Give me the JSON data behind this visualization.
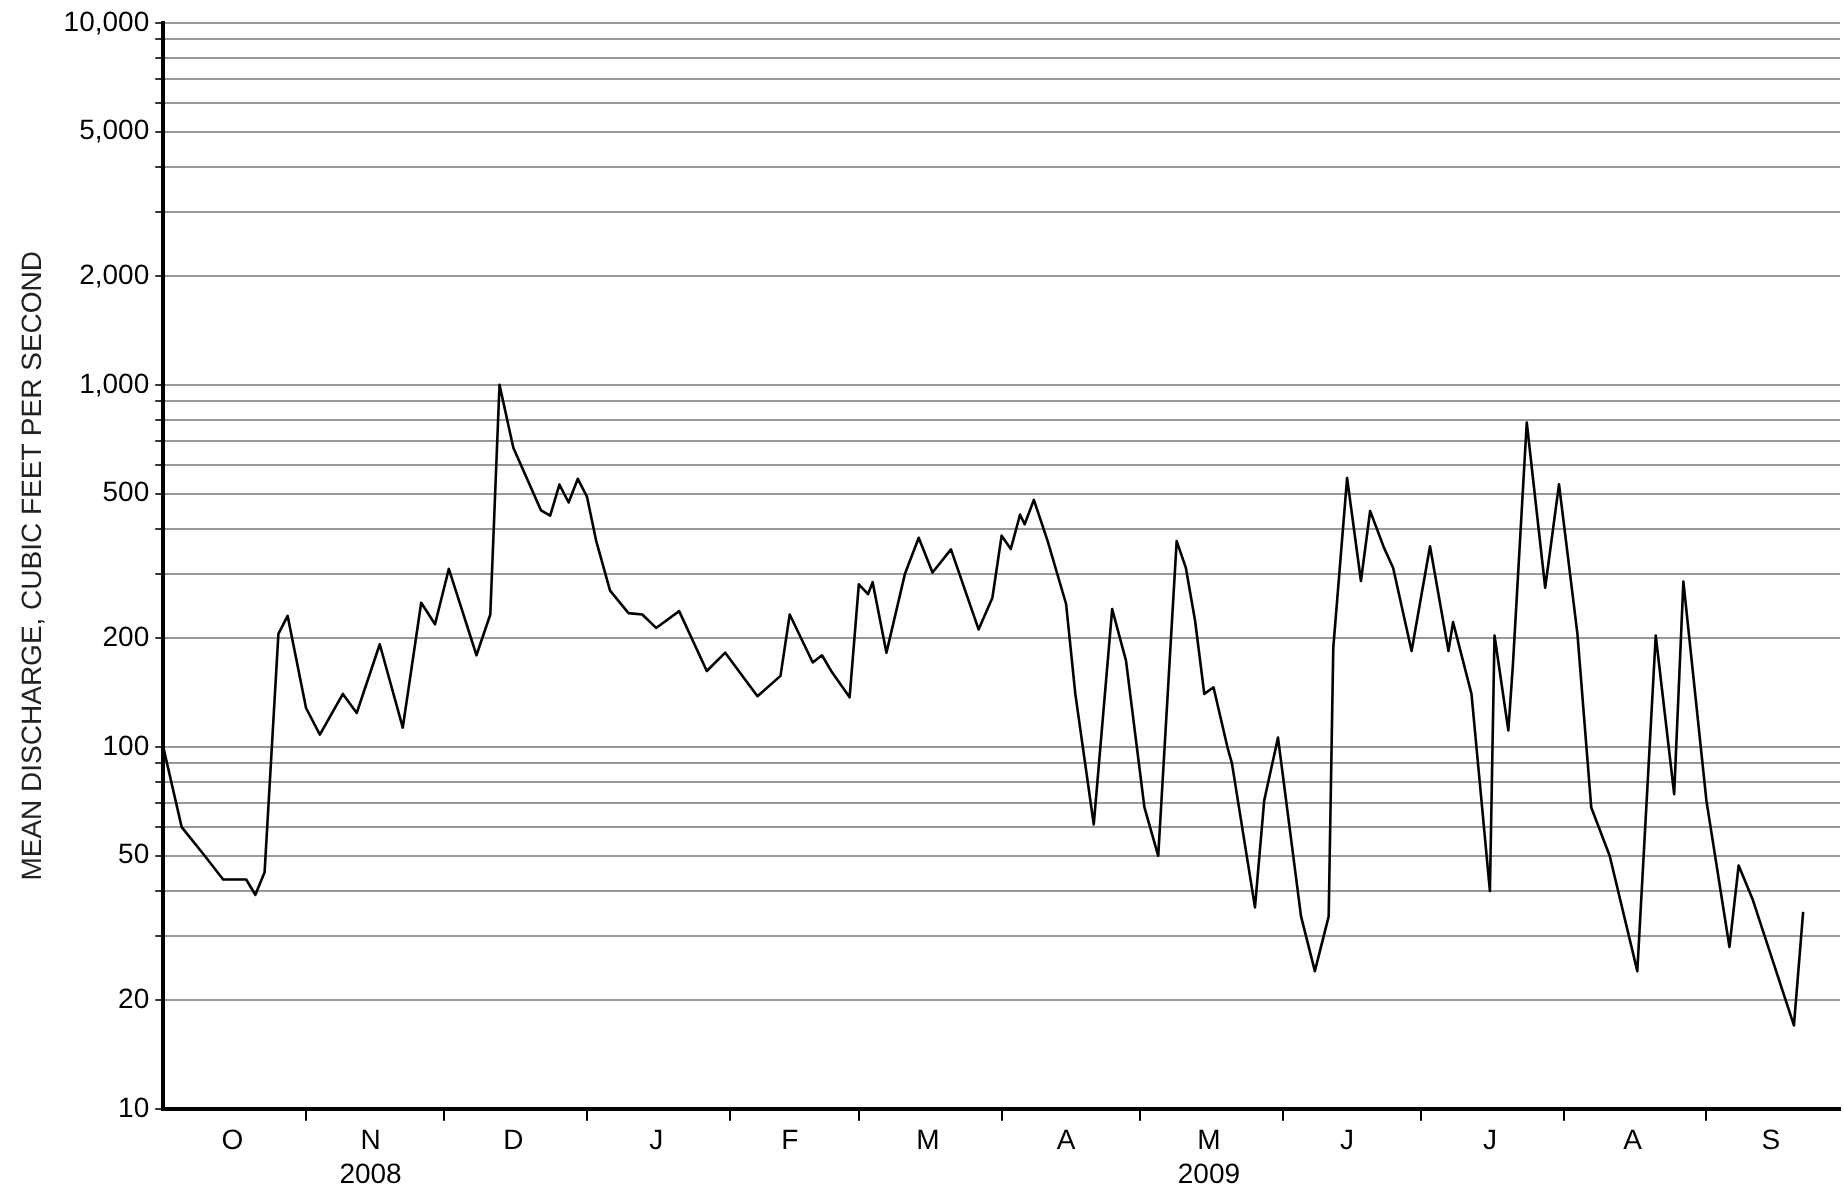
{
  "chart_data": {
    "type": "line",
    "ylabel": "MEAN DISCHARGE, CUBIC FEET PER SECOND",
    "log": "y",
    "grid": "y",
    "legend": false,
    "marker": "none",
    "line_style": "solid",
    "xlim": [
      "2008-10-01",
      "2009-09-30"
    ],
    "xticks": [
      {
        "value": "2008-11-01",
        "label": null
      },
      {
        "value": "2008-12-01",
        "label": null
      },
      {
        "value": "2009-01-01",
        "label": null
      },
      {
        "value": "2009-02-01",
        "label": null
      },
      {
        "value": "2009-03-01",
        "label": null
      },
      {
        "value": "2009-04-01",
        "label": null
      },
      {
        "value": "2009-05-01",
        "label": null
      },
      {
        "value": "2009-06-01",
        "label": null
      },
      {
        "value": "2009-07-01",
        "label": null
      },
      {
        "value": "2009-08-01",
        "label": null
      },
      {
        "value": "2009-09-01",
        "label": null
      },
      {
        "value": "2008-10-16",
        "label": "O"
      },
      {
        "value": "2008-11-15",
        "label": "N\n2008"
      },
      {
        "value": "2008-12-16",
        "label": "D"
      },
      {
        "value": "2009-01-16",
        "label": "J"
      },
      {
        "value": "2009-02-14",
        "label": "F"
      },
      {
        "value": "2009-03-16",
        "label": "M"
      },
      {
        "value": "2009-04-15",
        "label": "A"
      },
      {
        "value": "2009-05-16",
        "label": "M\n2009"
      },
      {
        "value": "2009-06-15",
        "label": "J"
      },
      {
        "value": "2009-07-16",
        "label": "J"
      },
      {
        "value": "2009-08-16",
        "label": "A"
      },
      {
        "value": "2009-09-15",
        "label": "S"
      }
    ],
    "ylim": [
      10,
      10000
    ],
    "yticks": [
      10,
      20,
      {
        "value": 30,
        "label": null
      },
      {
        "value": 40,
        "label": null
      },
      50,
      {
        "value": 60,
        "label": null
      },
      {
        "value": 70,
        "label": null
      },
      {
        "value": 80,
        "label": null
      },
      {
        "value": 90,
        "label": null
      },
      100,
      200,
      {
        "value": 300,
        "label": null
      },
      {
        "value": 400,
        "label": null
      },
      500,
      {
        "value": 600,
        "label": null
      },
      {
        "value": 700,
        "label": null
      },
      {
        "value": 800,
        "label": null
      },
      {
        "value": 900,
        "label": null
      },
      {
        "value": 1000,
        "label": "1,000"
      },
      {
        "value": 2000,
        "label": "2,000"
      },
      {
        "value": 3000,
        "label": null
      },
      {
        "value": 4000,
        "label": null
      },
      {
        "value": 5000,
        "label": "5,000"
      },
      {
        "value": 6000,
        "label": null
      },
      {
        "value": 7000,
        "label": null
      },
      {
        "value": 8000,
        "label": null
      },
      {
        "value": 9000,
        "label": null
      },
      {
        "value": 10000,
        "label": "10,000"
      }
    ],
    "x": [
      "2008-10-01",
      "2008-10-05",
      "2008-10-10",
      "2008-10-14",
      "2008-10-19",
      "2008-10-21",
      "2008-10-23",
      "2008-10-26",
      "2008-10-28",
      "2008-11-01",
      "2008-11-04",
      "2008-11-09",
      "2008-11-12",
      "2008-11-17",
      "2008-11-22",
      "2008-11-26",
      "2008-11-29",
      "2008-12-02",
      "2008-12-08",
      "2008-12-11",
      "2008-12-13",
      "2008-12-16",
      "2008-12-22",
      "2008-12-24",
      "2008-12-26",
      "2008-12-28",
      "2008-12-30",
      "2009-01-01",
      "2009-01-03",
      "2009-01-06",
      "2009-01-10",
      "2009-01-13",
      "2009-01-16",
      "2009-01-21",
      "2009-01-27",
      "2009-01-31",
      "2009-02-07",
      "2009-02-12",
      "2009-02-14",
      "2009-02-19",
      "2009-02-21",
      "2009-02-23",
      "2009-02-27",
      "2009-03-01",
      "2009-03-03",
      "2009-03-04",
      "2009-03-07",
      "2009-03-11",
      "2009-03-14",
      "2009-03-17",
      "2009-03-21",
      "2009-03-27",
      "2009-03-30",
      "2009-04-01",
      "2009-04-03",
      "2009-04-05",
      "2009-04-06",
      "2009-04-08",
      "2009-04-11",
      "2009-04-15",
      "2009-04-17",
      "2009-04-21",
      "2009-04-25",
      "2009-04-28",
      "2009-05-02",
      "2009-05-05",
      "2009-05-09",
      "2009-05-11",
      "2009-05-13",
      "2009-05-15",
      "2009-05-17",
      "2009-05-20",
      "2009-05-21",
      "2009-05-26",
      "2009-05-28",
      "2009-05-31",
      "2009-06-05",
      "2009-06-08",
      "2009-06-11",
      "2009-06-12",
      "2009-06-15",
      "2009-06-18",
      "2009-06-20",
      "2009-06-23",
      "2009-06-25",
      "2009-06-29",
      "2009-07-03",
      "2009-07-07",
      "2009-07-08",
      "2009-07-12",
      "2009-07-16",
      "2009-07-17",
      "2009-07-20",
      "2009-07-21",
      "2009-07-24",
      "2009-07-28",
      "2009-07-31",
      "2009-08-04",
      "2009-08-07",
      "2009-08-11",
      "2009-08-17",
      "2009-08-21",
      "2009-08-25",
      "2009-08-27",
      "2009-09-01",
      "2009-09-06",
      "2009-09-08",
      "2009-09-11",
      "2009-09-20",
      "2009-09-22"
    ],
    "series": [
      {
        "color": "#000000",
        "values": [
          100,
          60,
          50,
          43,
          43,
          39,
          45,
          205,
          230,
          128,
          108,
          140,
          124,
          192,
          113,
          250,
          218,
          310,
          179,
          232,
          1000,
          670,
          450,
          435,
          530,
          473,
          550,
          490,
          370,
          270,
          234,
          232,
          213,
          237,
          162,
          182,
          138,
          157,
          232,
          171,
          179,
          162,
          137,
          281,
          264,
          285,
          182,
          300,
          378,
          303,
          351,
          211,
          258,
          383,
          352,
          438,
          412,
          481,
          370,
          248,
          140,
          61,
          240,
          173,
          68,
          50,
          370,
          312,
          223,
          140,
          146,
          100,
          90,
          36,
          71,
          106,
          34,
          24,
          34,
          188,
          553,
          287,
          448,
          355,
          312,
          184,
          358,
          184,
          221,
          140,
          40,
          203,
          111,
          169,
          787,
          275,
          531,
          205,
          68,
          50,
          24,
          203,
          74,
          286,
          71,
          28,
          47,
          38,
          17,
          35
        ]
      }
    ]
  }
}
